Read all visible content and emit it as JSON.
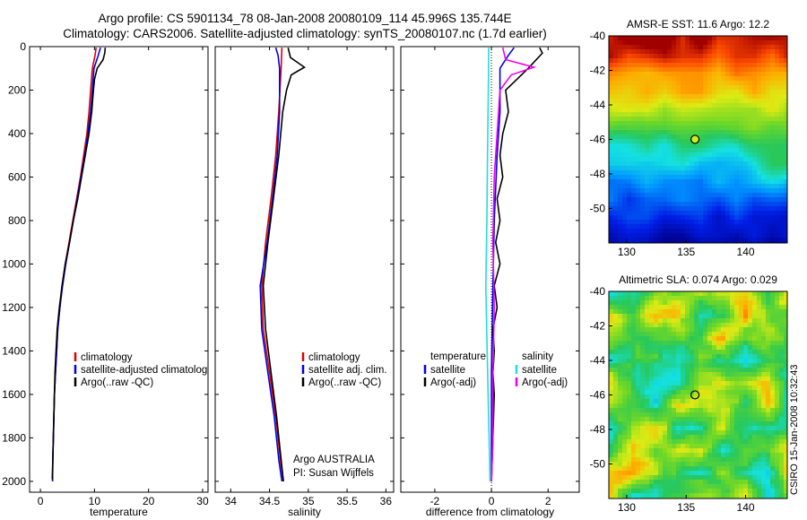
{
  "titles": {
    "line1": "Argo profile: CS 5901134_78 08-Jan-2008 20080109_114 45.996S 135.744E",
    "line2": "Climatology: CARS2006. Satellite-adjusted climatology: synTS_20080107.nc (1.7d earlier)"
  },
  "notes": {
    "argo_group": "Argo AUSTRALIA",
    "pi": "PI: Susan Wijffels",
    "stamp": "CSIRO 15-Jan-2008 10:32:43"
  },
  "colors": {
    "climatology": "#dd0000",
    "satellite": "#0000ee",
    "argo": "#000000",
    "sal_satellite": "#22dddd",
    "sal_argo": "#ee00ee",
    "float_marker": "#ccee22"
  },
  "chart_data": [
    {
      "type": "line",
      "id": "temperature-profile",
      "xlabel": "temperature",
      "xlim": [
        -2,
        31
      ],
      "xticks": [
        0,
        10,
        20,
        30
      ],
      "ylim": [
        2050,
        0
      ],
      "yticks": [
        0,
        200,
        400,
        600,
        800,
        1000,
        1200,
        1400,
        1600,
        1800,
        2000
      ],
      "legend": [
        "climatology",
        "satellite-adjusted climatology",
        "Argo(..raw -QC)"
      ],
      "series": [
        {
          "name": "climatology",
          "color": "#dd0000",
          "points": [
            [
              10.3,
              5
            ],
            [
              10.1,
              40
            ],
            [
              9.6,
              100
            ],
            [
              9.3,
              200
            ],
            [
              9.0,
              300
            ],
            [
              8.6,
              400
            ],
            [
              8.0,
              500
            ],
            [
              7.4,
              600
            ],
            [
              6.7,
              700
            ],
            [
              6.0,
              800
            ],
            [
              5.3,
              900
            ],
            [
              4.6,
              1000
            ],
            [
              4.0,
              1100
            ],
            [
              3.6,
              1200
            ],
            [
              3.2,
              1300
            ],
            [
              3.0,
              1400
            ],
            [
              2.8,
              1500
            ],
            [
              2.6,
              1600
            ],
            [
              2.5,
              1700
            ],
            [
              2.4,
              1800
            ],
            [
              2.3,
              1900
            ],
            [
              2.25,
              2000
            ]
          ]
        },
        {
          "name": "satellite-adjusted climatology",
          "color": "#0000ee",
          "points": [
            [
              11.1,
              5
            ],
            [
              10.7,
              40
            ],
            [
              9.9,
              100
            ],
            [
              9.6,
              200
            ],
            [
              9.3,
              300
            ],
            [
              8.8,
              400
            ],
            [
              8.2,
              500
            ],
            [
              7.5,
              600
            ],
            [
              6.8,
              700
            ],
            [
              6.1,
              800
            ],
            [
              5.4,
              900
            ],
            [
              4.7,
              1000
            ],
            [
              4.1,
              1100
            ],
            [
              3.6,
              1200
            ],
            [
              3.2,
              1300
            ],
            [
              3.0,
              1400
            ],
            [
              2.8,
              1500
            ],
            [
              2.6,
              1600
            ],
            [
              2.5,
              1700
            ],
            [
              2.4,
              1800
            ],
            [
              2.3,
              1900
            ],
            [
              2.25,
              2000
            ]
          ]
        },
        {
          "name": "Argo(..raw -QC)",
          "color": "#000000",
          "points": [
            [
              12.0,
              5
            ],
            [
              11.9,
              30
            ],
            [
              11.6,
              60
            ],
            [
              10.5,
              100
            ],
            [
              10.0,
              150
            ],
            [
              9.8,
              200
            ],
            [
              9.5,
              300
            ],
            [
              9.0,
              400
            ],
            [
              8.3,
              500
            ],
            [
              7.6,
              600
            ],
            [
              6.9,
              700
            ],
            [
              6.1,
              800
            ],
            [
              5.4,
              900
            ],
            [
              4.6,
              1000
            ],
            [
              4.0,
              1100
            ],
            [
              3.5,
              1200
            ],
            [
              3.1,
              1300
            ],
            [
              2.9,
              1400
            ],
            [
              2.7,
              1500
            ],
            [
              2.6,
              1600
            ],
            [
              2.5,
              1700
            ],
            [
              2.4,
              1800
            ],
            [
              2.3,
              1900
            ],
            [
              2.2,
              1990
            ]
          ]
        }
      ]
    },
    {
      "type": "line",
      "id": "salinity-profile",
      "xlabel": "salinity",
      "xlim": [
        33.8,
        36.1
      ],
      "xticks": [
        34,
        34.5,
        35,
        35.5,
        36
      ],
      "ylim": [
        2050,
        0
      ],
      "legend": [
        "climatology",
        "satellite adj. clim.",
        "Argo(..raw -QC)"
      ],
      "series": [
        {
          "name": "climatology",
          "color": "#dd0000",
          "points": [
            [
              34.66,
              5
            ],
            [
              34.65,
              100
            ],
            [
              34.62,
              300
            ],
            [
              34.58,
              500
            ],
            [
              34.52,
              700
            ],
            [
              34.45,
              900
            ],
            [
              34.4,
              1100
            ],
            [
              34.42,
              1300
            ],
            [
              34.5,
              1500
            ],
            [
              34.58,
              1700
            ],
            [
              34.64,
              1900
            ],
            [
              34.68,
              2000
            ]
          ]
        },
        {
          "name": "satellite adj. clim.",
          "color": "#0000ee",
          "points": [
            [
              34.58,
              5
            ],
            [
              34.61,
              40
            ],
            [
              34.63,
              100
            ],
            [
              34.63,
              300
            ],
            [
              34.6,
              500
            ],
            [
              34.54,
              700
            ],
            [
              34.47,
              900
            ],
            [
              34.38,
              1100
            ],
            [
              34.4,
              1300
            ],
            [
              34.48,
              1500
            ],
            [
              34.56,
              1700
            ],
            [
              34.62,
              1900
            ],
            [
              34.66,
              2000
            ]
          ]
        },
        {
          "name": "Argo(..raw -QC)",
          "color": "#000000",
          "points": [
            [
              34.74,
              5
            ],
            [
              34.77,
              50
            ],
            [
              34.95,
              95
            ],
            [
              34.78,
              130
            ],
            [
              34.72,
              200
            ],
            [
              34.67,
              300
            ],
            [
              34.62,
              500
            ],
            [
              34.55,
              700
            ],
            [
              34.48,
              900
            ],
            [
              34.42,
              1100
            ],
            [
              34.45,
              1300
            ],
            [
              34.52,
              1500
            ],
            [
              34.59,
              1700
            ],
            [
              34.65,
              1900
            ],
            [
              34.68,
              2000
            ]
          ]
        }
      ]
    },
    {
      "type": "line",
      "id": "difference-profile",
      "xlabel": "difference from climatology",
      "xlim": [
        -3.2,
        3.1
      ],
      "xticks": [
        -2,
        0,
        2
      ],
      "ylim": [
        2050,
        0
      ],
      "legend_left_title": "temperature",
      "legend_right_title": "salinity",
      "legend": [
        "satellite",
        "Argo(-adj)",
        "satellite",
        "Argo(-adj)"
      ],
      "series": [
        {
          "name": "temperature satellite",
          "color": "#0000ee",
          "points": [
            [
              0.8,
              5
            ],
            [
              0.6,
              40
            ],
            [
              0.3,
              100
            ],
            [
              0.3,
              300
            ],
            [
              0.2,
              500
            ],
            [
              0.1,
              800
            ],
            [
              0.05,
              1100
            ],
            [
              0.0,
              1500
            ],
            [
              0.0,
              2000
            ]
          ]
        },
        {
          "name": "temperature Argo(-adj)",
          "color": "#000000",
          "points": [
            [
              1.7,
              5
            ],
            [
              1.8,
              30
            ],
            [
              1.3,
              100
            ],
            [
              0.9,
              150
            ],
            [
              0.5,
              200
            ],
            [
              0.6,
              300
            ],
            [
              0.4,
              400
            ],
            [
              0.3,
              500
            ],
            [
              0.4,
              600
            ],
            [
              0.2,
              700
            ],
            [
              0.3,
              800
            ],
            [
              0.15,
              900
            ],
            [
              0.3,
              1000
            ],
            [
              0.1,
              1100
            ],
            [
              0.2,
              1200
            ],
            [
              0.05,
              1300
            ],
            [
              0.1,
              1400
            ],
            [
              0.05,
              1500
            ],
            [
              0.1,
              1600
            ],
            [
              0.05,
              1800
            ],
            [
              0.0,
              2000
            ]
          ]
        },
        {
          "name": "salinity satellite",
          "color": "#22dddd",
          "points": [
            [
              -0.1,
              5
            ],
            [
              -0.1,
              100
            ],
            [
              -0.12,
              300
            ],
            [
              -0.14,
              500
            ],
            [
              -0.16,
              800
            ],
            [
              -0.2,
              1100
            ],
            [
              -0.15,
              1400
            ],
            [
              -0.1,
              1700
            ],
            [
              -0.05,
              2000
            ]
          ]
        },
        {
          "name": "salinity Argo(-adj)",
          "color": "#ee00ee",
          "points": [
            [
              0.4,
              5
            ],
            [
              0.5,
              60
            ],
            [
              1.5,
              95
            ],
            [
              0.7,
              130
            ],
            [
              0.3,
              200
            ],
            [
              0.2,
              400
            ],
            [
              0.1,
              600
            ],
            [
              0.05,
              900
            ],
            [
              0.1,
              1200
            ],
            [
              0.05,
              1500
            ],
            [
              0.05,
              1800
            ],
            [
              0.0,
              2000
            ]
          ]
        }
      ]
    },
    {
      "type": "heatmap",
      "id": "sst-map",
      "title": "AMSR-E SST: 11.6 Argo: 12.2",
      "xlim": [
        128.5,
        143.5
      ],
      "ylim": [
        -52,
        -40
      ],
      "xticks": [
        130,
        135,
        140
      ],
      "yticks": [
        -40,
        -42,
        -44,
        -46,
        -48,
        -50
      ],
      "float_position": [
        135.744,
        -45.996
      ]
    },
    {
      "type": "heatmap",
      "id": "sla-map",
      "title": "Altimetric SLA: 0.074 Argo: 0.029",
      "xlim": [
        128.5,
        143.5
      ],
      "ylim": [
        -52,
        -40
      ],
      "xticks": [
        130,
        135,
        140
      ],
      "yticks": [
        -40,
        -42,
        -44,
        -46,
        -48,
        -50
      ],
      "float_position": [
        135.744,
        -45.996
      ]
    }
  ]
}
